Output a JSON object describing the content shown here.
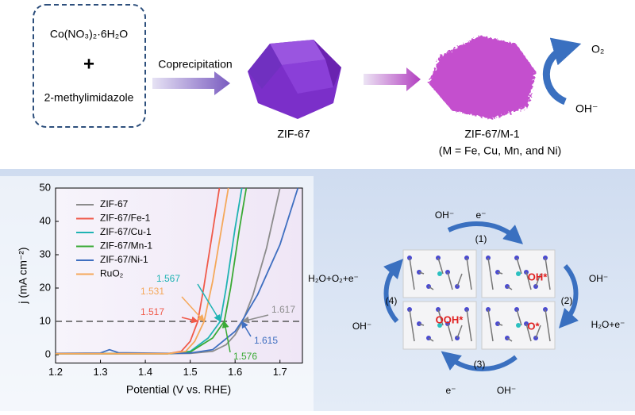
{
  "scheme": {
    "reagent1": "Co(NO₃)₂·6H₂O",
    "plus": "+",
    "reagent2": "2-methylimidazole",
    "step": "Coprecipitation",
    "product1": "ZIF-67",
    "product2": "ZIF-67/M-1",
    "product2_note": "(M = Fe, Cu, Mn, and Ni)",
    "oer_out": "O₂",
    "oer_in": "OH⁻"
  },
  "chart_data": {
    "type": "line",
    "xlabel": "Potential (V vs. RHE)",
    "ylabel": "j (mA cm⁻²)",
    "xlim": [
      1.2,
      1.75
    ],
    "ylim": [
      -2.5,
      50
    ],
    "xticks": [
      1.2,
      1.3,
      1.4,
      1.5,
      1.6,
      1.7
    ],
    "yticks": [
      0,
      10,
      20,
      30,
      40,
      50
    ],
    "hline": 10,
    "series": [
      {
        "name": "ZIF-67",
        "color": "#8c8c8c",
        "x": [
          1.2,
          1.45,
          1.5,
          1.55,
          1.58,
          1.6,
          1.617,
          1.64,
          1.67,
          1.7
        ],
        "values": [
          0.3,
          0.3,
          0.4,
          1,
          3,
          6,
          10,
          18,
          32,
          50
        ]
      },
      {
        "name": "ZIF-67/Fe-1",
        "color": "#f05a4a",
        "x": [
          1.2,
          1.45,
          1.48,
          1.5,
          1.517,
          1.53,
          1.55,
          1.565
        ],
        "values": [
          0.3,
          0.3,
          1,
          4,
          10,
          20,
          37,
          50
        ]
      },
      {
        "name": "ZIF-67/Cu-1",
        "color": "#1fb3b3",
        "x": [
          1.2,
          1.45,
          1.5,
          1.54,
          1.567,
          1.58,
          1.6,
          1.615
        ],
        "values": [
          0.3,
          0.3,
          1,
          5,
          10,
          20,
          38,
          50
        ]
      },
      {
        "name": "ZIF-67/Mn-1",
        "color": "#3aaa35",
        "x": [
          1.2,
          1.45,
          1.5,
          1.55,
          1.576,
          1.59,
          1.61,
          1.625
        ],
        "values": [
          0.3,
          0.3,
          0.8,
          5,
          10,
          20,
          38,
          50
        ]
      },
      {
        "name": "ZIF-67/Ni-1",
        "color": "#3f6fc0",
        "x": [
          1.2,
          1.3,
          1.32,
          1.34,
          1.45,
          1.5,
          1.55,
          1.6,
          1.615,
          1.65,
          1.7,
          1.74
        ],
        "values": [
          0.4,
          0.5,
          1.5,
          0.6,
          0.4,
          0.5,
          1.5,
          7,
          10,
          18,
          33,
          50
        ]
      },
      {
        "name": "RuO₂",
        "color": "#f5a85a",
        "x": [
          1.2,
          1.45,
          1.49,
          1.51,
          1.531,
          1.55,
          1.57,
          1.585
        ],
        "values": [
          0.3,
          0.3,
          1,
          4,
          10,
          22,
          38,
          50
        ]
      }
    ],
    "annotations": [
      {
        "value": 1.617,
        "color": "#8c8c8c"
      },
      {
        "value": 1.615,
        "color": "#3f6fc0"
      },
      {
        "value": 1.576,
        "color": "#3aaa35"
      },
      {
        "value": 1.567,
        "color": "#1fb3b3"
      },
      {
        "value": 1.531,
        "color": "#f5a85a"
      },
      {
        "value": 1.517,
        "color": "#f05a4a"
      }
    ]
  },
  "cycle": {
    "labels": [
      "OH⁻",
      "e⁻",
      "(1)",
      "OH⁻",
      "(2)",
      "H₂O+e⁻",
      "(3)",
      "e⁻",
      "OH⁻",
      "(4)",
      "H₂O+O₂+e⁻",
      "OH⁻"
    ],
    "intermediates": [
      "OH*",
      "O*",
      "OOH*"
    ]
  }
}
